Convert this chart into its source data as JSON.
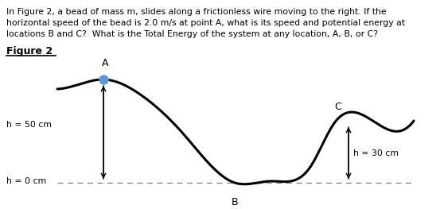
{
  "line1": "In Figure 2, a bead of mass m, slides along a frictionless wire moving to the right. If the",
  "line2": "horizontal speed of the bead is 2.0 m/s at point A, what is its speed and potential energy at",
  "line3": "locations B and C?  What is the Total Energy of the system at any location, A, B, or C?",
  "figure_label": "Figure 2",
  "label_A": "A",
  "label_B": "B",
  "label_C": "C",
  "label_h50": "h = 50 cm",
  "label_h0": "h = 0 cm",
  "label_h30": "h = 30 cm",
  "bead_color": "#5b9bd5",
  "wire_color": "#000000",
  "arrow_color": "#000000",
  "dashed_color": "#888888",
  "background_color": "#ffffff",
  "fig_width": 5.58,
  "fig_height": 2.63,
  "dpi": 100
}
